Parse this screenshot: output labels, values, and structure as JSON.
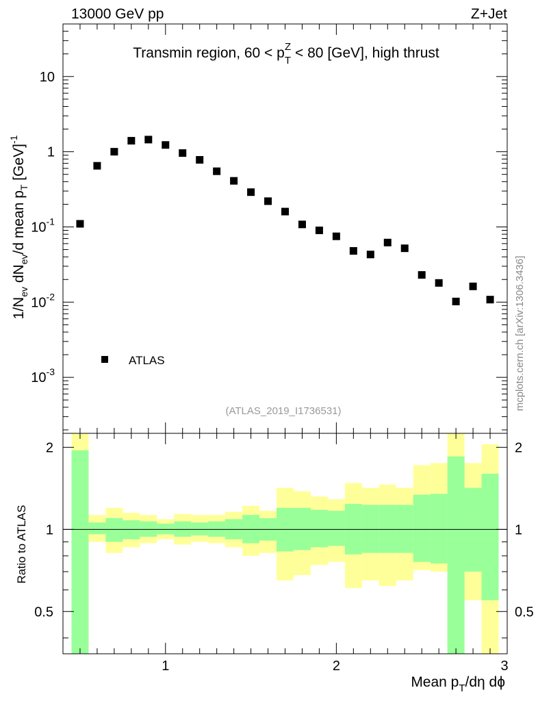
{
  "header": {
    "left": "13000 GeV pp",
    "right": "Z+Jet"
  },
  "watermark": "mcplots.cern.ch [arXiv:1306.3436]",
  "analysis_id": "(ATLAS_2019_I1736531)",
  "legend": {
    "label": "ATLAS"
  },
  "chart_data": [
    {
      "type": "scatter",
      "title": "Transmin region, 60 < pTZ < 80 [GeV], high thrust",
      "ylabel": "1/Nev dNev/d mean pT [GeV]-1",
      "yscale": "log",
      "ylim": [
        0.00018,
        50
      ],
      "xlim": [
        0.4,
        3.0
      ],
      "y_tick_labels": [
        "10^-3",
        "10^-2",
        "10^-1",
        "1",
        "10"
      ],
      "series": [
        {
          "name": "ATLAS",
          "x": [
            0.5,
            0.6,
            0.7,
            0.8,
            0.9,
            1.0,
            1.1,
            1.2,
            1.3,
            1.4,
            1.5,
            1.6,
            1.7,
            1.8,
            1.9,
            2.0,
            2.1,
            2.2,
            2.3,
            2.4,
            2.5,
            2.6,
            2.7,
            2.8,
            2.9
          ],
          "y": [
            0.11,
            0.65,
            1.0,
            1.4,
            1.45,
            1.23,
            0.96,
            0.78,
            0.55,
            0.41,
            0.29,
            0.22,
            0.16,
            0.108,
            0.09,
            0.075,
            0.048,
            0.043,
            0.062,
            0.052,
            0.023,
            0.018,
            0.0102,
            0.0162,
            0.0108
          ]
        }
      ]
    },
    {
      "type": "area",
      "ylabel": "Ratio to ATLAS",
      "xlabel": "Mean pT/dη dϕ",
      "xlim": [
        0.4,
        3.0
      ],
      "ylim": [
        0.35,
        2.25
      ],
      "x_tick_labels": [
        "1",
        "2",
        "3"
      ],
      "y_tick_labels": [
        "0.5",
        "1",
        "2"
      ],
      "reference_line": 1.0,
      "bins": {
        "lo": [
          0.45,
          0.55,
          0.65,
          0.75,
          0.85,
          0.95,
          1.05,
          1.15,
          1.25,
          1.35,
          1.45,
          1.55,
          1.65,
          1.75,
          1.85,
          1.95,
          2.05,
          2.15,
          2.25,
          2.35,
          2.45,
          2.55,
          2.65,
          2.75,
          2.85
        ],
        "hi": [
          0.55,
          0.65,
          0.75,
          0.85,
          0.95,
          1.05,
          1.15,
          1.25,
          1.35,
          1.45,
          1.55,
          1.65,
          1.75,
          1.85,
          1.95,
          2.05,
          2.15,
          2.25,
          2.35,
          2.45,
          2.55,
          2.65,
          2.75,
          2.85,
          2.95
        ]
      },
      "series": [
        {
          "name": "yellow band (total uncertainty)",
          "color": "#ffff99",
          "low": [
            0.3,
            0.9,
            0.82,
            0.86,
            0.89,
            0.92,
            0.88,
            0.9,
            0.89,
            0.86,
            0.8,
            0.82,
            0.65,
            0.68,
            0.74,
            0.76,
            0.61,
            0.65,
            0.62,
            0.65,
            0.71,
            0.7,
            0.3,
            0.55,
            0.3
          ],
          "high": [
            2.3,
            1.13,
            1.2,
            1.15,
            1.13,
            1.09,
            1.14,
            1.13,
            1.13,
            1.16,
            1.22,
            1.17,
            1.42,
            1.38,
            1.32,
            1.29,
            1.48,
            1.42,
            1.46,
            1.42,
            1.72,
            1.75,
            2.3,
            1.75,
            2.05
          ]
        },
        {
          "name": "green band (statistical uncertainty)",
          "color": "#99ff99",
          "low": [
            0.3,
            0.96,
            0.9,
            0.92,
            0.94,
            0.96,
            0.94,
            0.95,
            0.94,
            0.92,
            0.89,
            0.91,
            0.83,
            0.84,
            0.86,
            0.87,
            0.81,
            0.82,
            0.82,
            0.82,
            0.76,
            0.75,
            0.3,
            0.7,
            0.55
          ],
          "high": [
            1.95,
            1.06,
            1.1,
            1.08,
            1.07,
            1.05,
            1.07,
            1.06,
            1.07,
            1.09,
            1.13,
            1.1,
            1.2,
            1.2,
            1.18,
            1.17,
            1.24,
            1.23,
            1.23,
            1.23,
            1.34,
            1.35,
            1.85,
            1.42,
            1.6
          ]
        }
      ]
    }
  ]
}
